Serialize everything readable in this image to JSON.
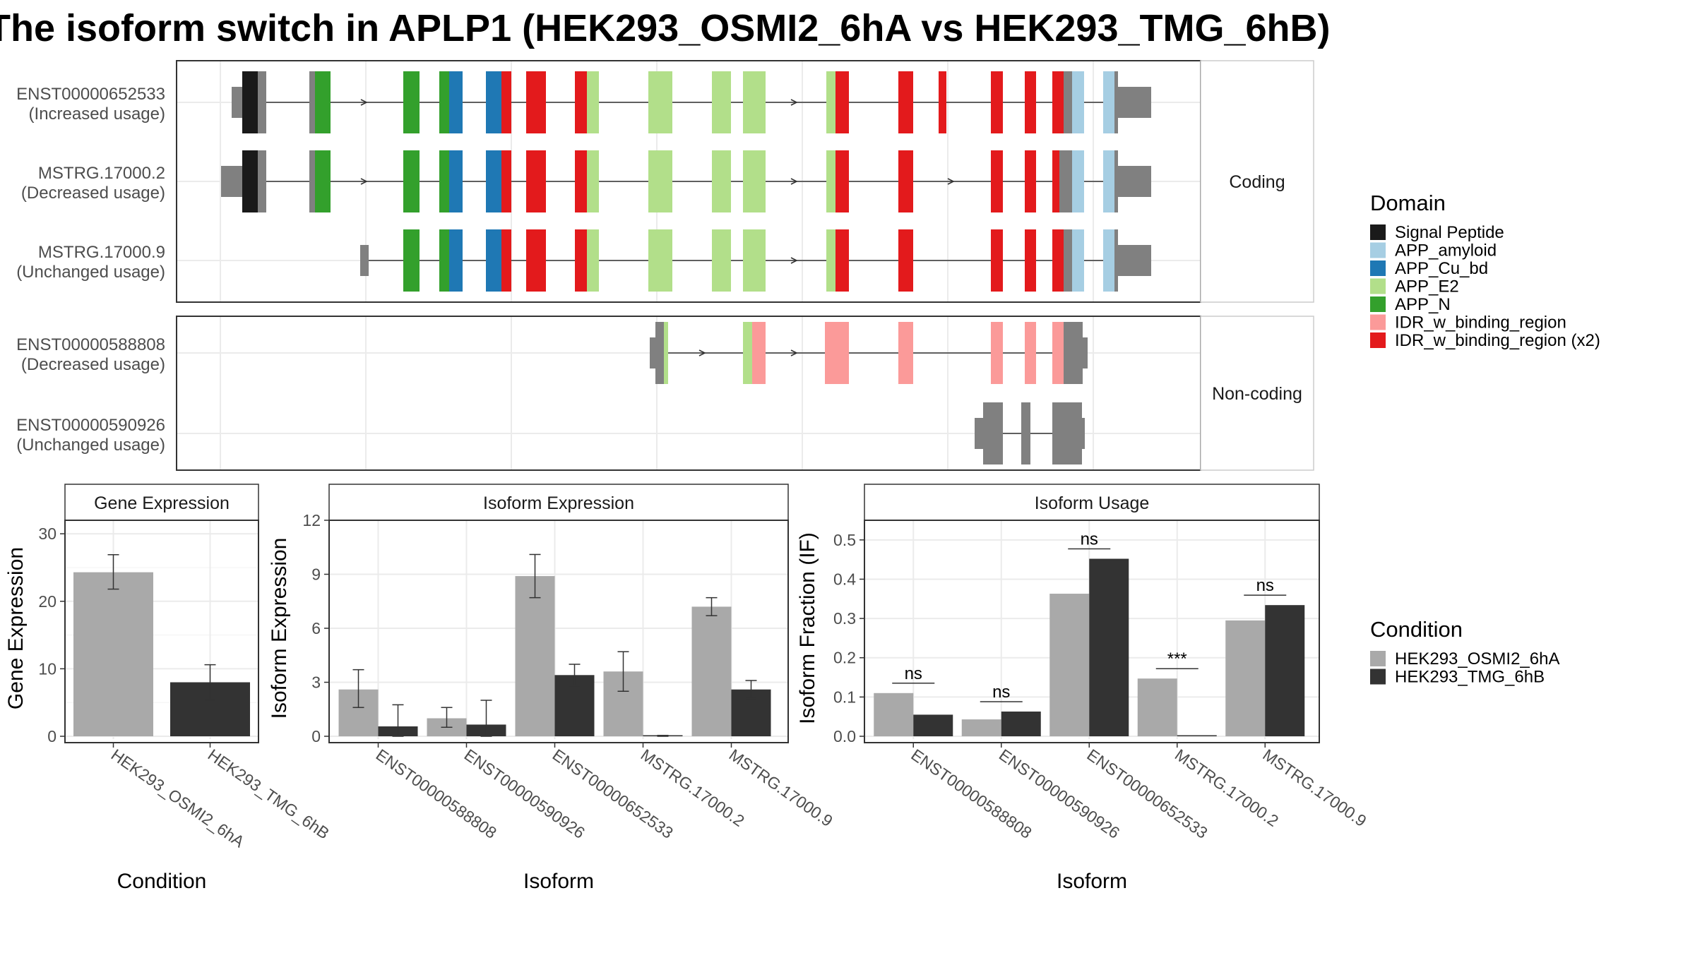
{
  "title": "The isoform switch in APLP1 (HEK293_OSMI2_6hA vs HEK293_TMG_6hB)",
  "colors": {
    "condition_a": "#A9A9A9",
    "condition_b": "#333333",
    "intron": "#333333",
    "utr": "#808080",
    "Signal Peptide": "#1A1A1A",
    "APP_amyloid": "#A6CEE3",
    "APP_Cu_bd": "#1F78B4",
    "APP_E2": "#B2DF8A",
    "APP_N": "#33A02C",
    "IDR_w_binding_region": "#FB9A99",
    "IDR_w_binding_region (x2)": "#E31A1C"
  },
  "structure": {
    "panels": [
      {
        "label": "Coding",
        "isoforms": [
          {
            "name": "ENST00000652533",
            "usage": "(Increased usage)"
          },
          {
            "name": "MSTRG.17000.2",
            "usage": "(Decreased usage)"
          },
          {
            "name": "MSTRG.17000.9",
            "usage": "(Unchanged usage)"
          }
        ]
      },
      {
        "label": "Non-coding",
        "isoforms": [
          {
            "name": "ENST00000588808",
            "usage": "(Decreased usage)"
          },
          {
            "name": "ENST00000590926",
            "usage": "(Unchanged usage)"
          }
        ]
      }
    ]
  },
  "legend_domain": {
    "title": "Domain",
    "items": [
      "Signal Peptide",
      "APP_amyloid",
      "APP_Cu_bd",
      "APP_E2",
      "APP_N",
      "IDR_w_binding_region",
      "IDR_w_binding_region (x2)"
    ]
  },
  "legend_condition": {
    "title": "Condition",
    "items": [
      "HEK293_OSMI2_6hA",
      "HEK293_TMG_6hB"
    ]
  },
  "chart_data": [
    {
      "type": "bar",
      "title": "Gene Expression",
      "xlabel": "Condition",
      "ylabel": "Gene Expression",
      "ylim": [
        0,
        32
      ],
      "yticks": [
        0,
        10,
        20,
        30
      ],
      "categories": [
        "HEK293_OSMI2_6hA",
        "HEK293_TMG_6hB"
      ],
      "values": [
        24.3,
        8.0
      ],
      "errors": [
        [
          21.8,
          26.9
        ],
        [
          5.4,
          10.6
        ]
      ]
    },
    {
      "type": "bar",
      "title": "Isoform Expression",
      "xlabel": "Isoform",
      "ylabel": "Isoform Expression",
      "ylim": [
        0,
        12
      ],
      "yticks": [
        0,
        3,
        6,
        9,
        12
      ],
      "categories": [
        "ENST00000588808",
        "ENST00000590926",
        "ENST00000652533",
        "MSTRG.17000.2",
        "MSTRG.17000.9"
      ],
      "series": [
        {
          "name": "HEK293_OSMI2_6hA",
          "values": [
            2.6,
            1.0,
            8.9,
            3.6,
            7.2
          ],
          "errors": [
            [
              1.6,
              3.7
            ],
            [
              0.5,
              1.6
            ],
            [
              7.7,
              10.1
            ],
            [
              2.5,
              4.7
            ],
            [
              6.7,
              7.7
            ]
          ]
        },
        {
          "name": "HEK293_TMG_6hB",
          "values": [
            0.55,
            0.65,
            3.4,
            0.0,
            2.6
          ],
          "errors": [
            [
              0.0,
              1.75
            ],
            [
              0.0,
              2.0
            ],
            [
              2.8,
              4.0
            ],
            [
              0.0,
              0.05
            ],
            [
              2.1,
              3.1
            ]
          ]
        }
      ]
    },
    {
      "type": "bar",
      "title": "Isoform Usage",
      "xlabel": "Isoform",
      "ylabel": "Isoform Fraction (IF)",
      "ylim": [
        0,
        0.55
      ],
      "yticks": [
        "0.0",
        "0.1",
        "0.2",
        "0.3",
        "0.4",
        "0.5"
      ],
      "categories": [
        "ENST00000588808",
        "ENST00000590926",
        "ENST00000652533",
        "MSTRG.17000.2",
        "MSTRG.17000.9"
      ],
      "series": [
        {
          "name": "HEK293_OSMI2_6hA",
          "values": [
            0.11,
            0.043,
            0.363,
            0.147,
            0.295
          ]
        },
        {
          "name": "HEK293_TMG_6hB",
          "values": [
            0.055,
            0.063,
            0.452,
            0.0,
            0.334
          ]
        }
      ],
      "significance": [
        "ns",
        "ns",
        "ns",
        "***",
        "ns"
      ]
    }
  ]
}
